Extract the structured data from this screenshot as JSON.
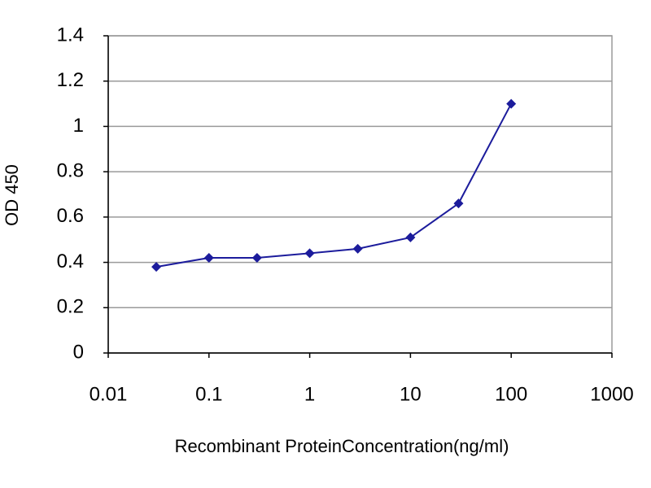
{
  "chart_data": {
    "type": "line",
    "x_label": "Recombinant ProteinConcentration(ng/ml)",
    "y_label": "OD 450",
    "series": [
      {
        "color": "#1c1c9c",
        "x": [
          0.03,
          0.1,
          0.3,
          1,
          3,
          10,
          30,
          100
        ],
        "values": [
          0.38,
          0.42,
          0.42,
          0.44,
          0.46,
          0.51,
          0.66,
          1.1
        ]
      }
    ],
    "xscale": "log",
    "xlim": [
      0.01,
      1000
    ],
    "xticks": [
      0.01,
      0.1,
      1,
      10,
      100,
      1000
    ],
    "ylim": [
      0,
      1.4
    ],
    "yticks": [
      0,
      0.2,
      0.4,
      0.6,
      0.8,
      1,
      1.2,
      1.4
    ],
    "grid": true
  }
}
